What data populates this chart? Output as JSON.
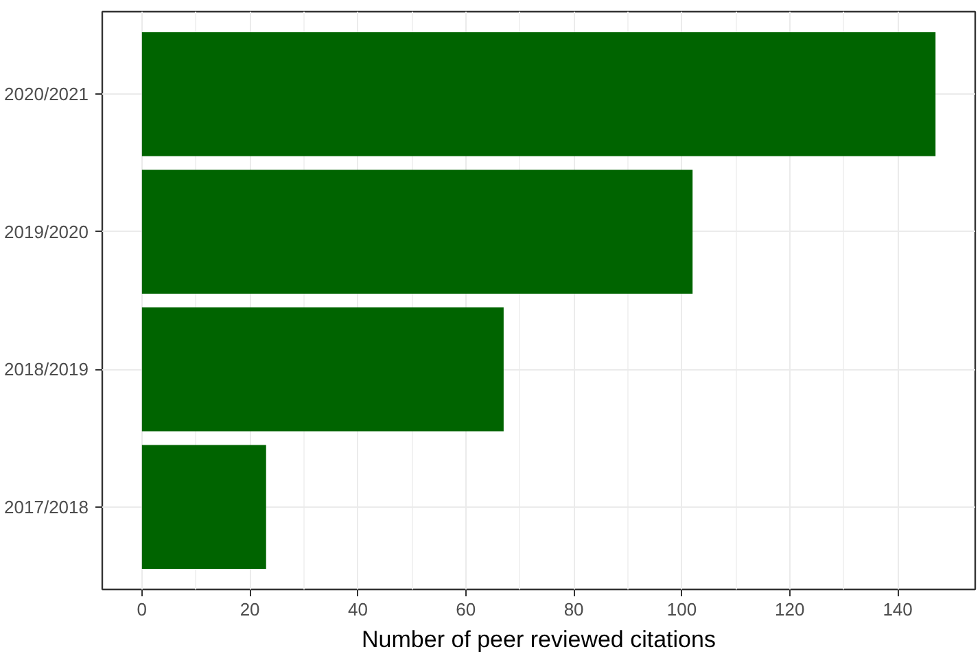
{
  "chart_data": {
    "type": "bar",
    "orientation": "horizontal",
    "xlabel": "Number of peer reviewed citations",
    "categories": [
      "2020/2021",
      "2019/2020",
      "2018/2019",
      "2017/2018"
    ],
    "values": [
      147,
      102,
      67,
      23
    ],
    "color": "#006400",
    "xlim": [
      -7.35,
      154.35
    ],
    "xticks": [
      0,
      20,
      40,
      60,
      80,
      100,
      120,
      140
    ],
    "grid": true
  }
}
